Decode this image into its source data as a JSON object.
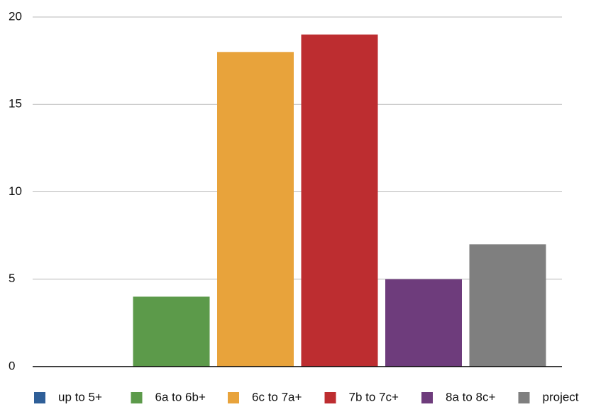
{
  "chart_data": {
    "type": "bar",
    "series": [
      {
        "name": "up to 5+",
        "color": "#2f5f98",
        "values": [
          0
        ]
      },
      {
        "name": "6a to 6b+",
        "color": "#5c9a4a",
        "values": [
          4
        ]
      },
      {
        "name": "6c to 7a+",
        "color": "#e8a33b",
        "values": [
          18
        ]
      },
      {
        "name": "7b to 7c+",
        "color": "#bd2d30",
        "values": [
          19
        ]
      },
      {
        "name": "8a to 8c+",
        "color": "#6e3c7c",
        "values": [
          5
        ]
      },
      {
        "name": "project",
        "color": "#7f7f7f",
        "values": [
          7
        ]
      }
    ],
    "ylim": [
      0,
      20
    ],
    "yticks": [
      0,
      5,
      10,
      15,
      20
    ],
    "grid": true,
    "legend": "bottom"
  }
}
